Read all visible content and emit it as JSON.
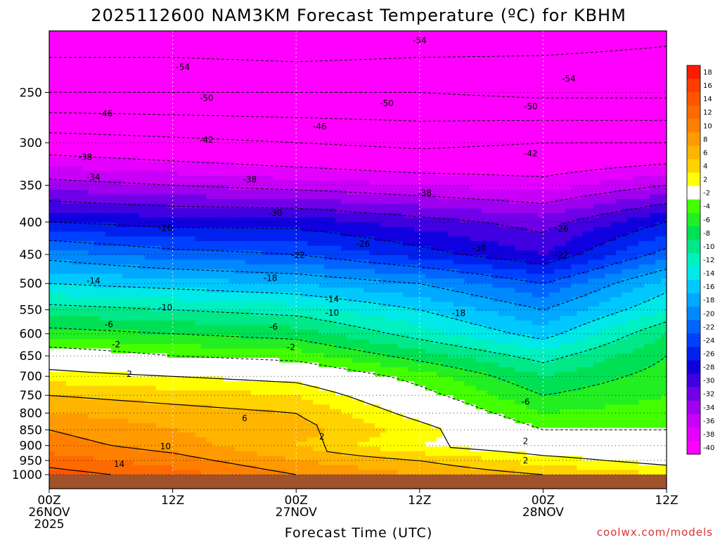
{
  "chart_data": {
    "type": "heatmap",
    "title": "2025112600 NAM3KM Forecast Temperature (ºC) for KBHM",
    "xlabel": "Forecast Time (UTC)",
    "ylabel": "",
    "credit": "coolwx.com/models",
    "x_ticks": [
      {
        "hours": 0,
        "line1": "00Z",
        "line2": "26NOV",
        "line3": "2025"
      },
      {
        "hours": 12,
        "line1": "12Z",
        "line2": "",
        "line3": ""
      },
      {
        "hours": 24,
        "line1": "00Z",
        "line2": "27NOV",
        "line3": ""
      },
      {
        "hours": 36,
        "line1": "12Z",
        "line2": "",
        "line3": ""
      },
      {
        "hours": 48,
        "line1": "00Z",
        "line2": "28NOV",
        "line3": ""
      },
      {
        "hours": 60,
        "line1": "12Z",
        "line2": "",
        "line3": ""
      }
    ],
    "xlim": [
      0,
      60
    ],
    "y_ticks": [
      250,
      300,
      350,
      400,
      450,
      500,
      550,
      600,
      650,
      700,
      750,
      800,
      850,
      900,
      950,
      1000
    ],
    "ylim": [
      200,
      1000
    ],
    "y_scale": "log-pressure (hPa)",
    "colorbar": {
      "labels": [
        18,
        16,
        14,
        12,
        10,
        8,
        6,
        4,
        2,
        -2,
        -4,
        -6,
        -8,
        -10,
        -12,
        -14,
        -16,
        -18,
        -20,
        -22,
        -24,
        -26,
        -28,
        -30,
        -32,
        -34,
        -36,
        -38,
        -40
      ],
      "colors": [
        "#ff1a00",
        "#ff3c00",
        "#ff5500",
        "#ff6a00",
        "#ff8000",
        "#ff9a00",
        "#ffb400",
        "#ffd200",
        "#ffff00",
        "#ffffff",
        "#44ff00",
        "#22ee22",
        "#00e055",
        "#00e888",
        "#00f0c0",
        "#00e8e8",
        "#00c8ff",
        "#00a8ff",
        "#0088ff",
        "#0064ff",
        "#0040ff",
        "#0020ee",
        "#1000e0",
        "#4000e0",
        "#7000e8",
        "#a000f0",
        "#c800f8",
        "#e400ff",
        "#ff00ff"
      ]
    },
    "temperature_levels": [
      {
        "p": 200,
        "t": [
          -57,
          -57,
          -58,
          -57,
          -56,
          -55
        ]
      },
      {
        "p": 250,
        "t": [
          -50,
          -50,
          -50,
          -50,
          -51,
          -51
        ]
      },
      {
        "p": 300,
        "t": [
          -40,
          -41,
          -42,
          -43,
          -42,
          -42
        ]
      },
      {
        "p": 350,
        "t": [
          -33,
          -34,
          -35,
          -36,
          -37,
          -34
        ]
      },
      {
        "p": 400,
        "t": [
          -26,
          -27,
          -27,
          -29,
          -31,
          -26
        ]
      },
      {
        "p": 450,
        "t": [
          -19,
          -21,
          -22,
          -25,
          -28,
          -21
        ]
      },
      {
        "p": 500,
        "t": [
          -14,
          -15,
          -16,
          -18,
          -22,
          -15
        ]
      },
      {
        "p": 550,
        "t": [
          -9,
          -10,
          -11,
          -14,
          -18,
          -12
        ]
      },
      {
        "p": 600,
        "t": [
          -5,
          -6,
          -7,
          -11,
          -15,
          -8
        ]
      },
      {
        "p": 650,
        "t": [
          0,
          -2,
          -3,
          -7,
          -11,
          -6
        ]
      },
      {
        "p": 700,
        "t": [
          3,
          2,
          1,
          -3,
          -8,
          -5
        ]
      },
      {
        "p": 750,
        "t": [
          6,
          5,
          4,
          -1,
          -6,
          -4
        ]
      },
      {
        "p": 800,
        "t": [
          8,
          7,
          6,
          1,
          -4,
          -3
        ]
      },
      {
        "p": 850,
        "t": [
          10,
          8,
          7,
          3,
          -2,
          -2
        ]
      },
      {
        "p": 900,
        "t": [
          11,
          9,
          6,
          2,
          0,
          -1
        ]
      },
      {
        "p": 950,
        "t": [
          13,
          11,
          8,
          6,
          3,
          1
        ]
      },
      {
        "p": 1000,
        "t": [
          15,
          13,
          10,
          8,
          6,
          4
        ]
      }
    ],
    "contour_labels": [
      {
        "text": "-54",
        "hours": 13,
        "p": 228
      },
      {
        "text": "-54",
        "hours": 36,
        "p": 207
      },
      {
        "text": "-54",
        "hours": 50.5,
        "p": 238
      },
      {
        "text": "-50",
        "hours": 15.3,
        "p": 255
      },
      {
        "text": "-50",
        "hours": 32.8,
        "p": 260
      },
      {
        "text": "-50",
        "hours": 46.8,
        "p": 263
      },
      {
        "text": "-46",
        "hours": 5.5,
        "p": 270
      },
      {
        "text": "-46",
        "hours": 26.3,
        "p": 283
      },
      {
        "text": "-42",
        "hours": 15.3,
        "p": 297
      },
      {
        "text": "-42",
        "hours": 46.8,
        "p": 312
      },
      {
        "text": "-38",
        "hours": 3.5,
        "p": 316
      },
      {
        "text": "-38",
        "hours": 19.5,
        "p": 343
      },
      {
        "text": "-38",
        "hours": 36.5,
        "p": 360
      },
      {
        "text": "-34",
        "hours": 4.3,
        "p": 340
      },
      {
        "text": "-30",
        "hours": 22,
        "p": 387
      },
      {
        "text": "-30",
        "hours": 41.8,
        "p": 440
      },
      {
        "text": "-26",
        "hours": 11.3,
        "p": 409
      },
      {
        "text": "-26",
        "hours": 30.5,
        "p": 433
      },
      {
        "text": "-26",
        "hours": 49.8,
        "p": 410
      },
      {
        "text": "-22",
        "hours": 24.2,
        "p": 451
      },
      {
        "text": "-22",
        "hours": 49.8,
        "p": 451
      },
      {
        "text": "-18",
        "hours": 21.5,
        "p": 490
      },
      {
        "text": "-18",
        "hours": 39.8,
        "p": 557
      },
      {
        "text": "-14",
        "hours": 4.3,
        "p": 495
      },
      {
        "text": "-14",
        "hours": 27.5,
        "p": 529
      },
      {
        "text": "-10",
        "hours": 11.3,
        "p": 546
      },
      {
        "text": "-10",
        "hours": 27.5,
        "p": 556
      },
      {
        "text": "-6",
        "hours": 5.8,
        "p": 580
      },
      {
        "text": "-6",
        "hours": 21.8,
        "p": 585
      },
      {
        "text": "-6",
        "hours": 46.3,
        "p": 768
      },
      {
        "text": "-2",
        "hours": 6.5,
        "p": 624
      },
      {
        "text": "-2",
        "hours": 23.5,
        "p": 630
      },
      {
        "text": "2",
        "hours": 7.8,
        "p": 694
      },
      {
        "text": "2",
        "hours": 26.5,
        "p": 871
      },
      {
        "text": "2",
        "hours": 46.3,
        "p": 886
      },
      {
        "text": "2",
        "hours": 46.3,
        "p": 950
      },
      {
        "text": "6",
        "hours": 19,
        "p": 815
      },
      {
        "text": "10",
        "hours": 11.3,
        "p": 903
      },
      {
        "text": "14",
        "hours": 6.8,
        "p": 962
      }
    ],
    "ground_color": "#a0522d"
  }
}
